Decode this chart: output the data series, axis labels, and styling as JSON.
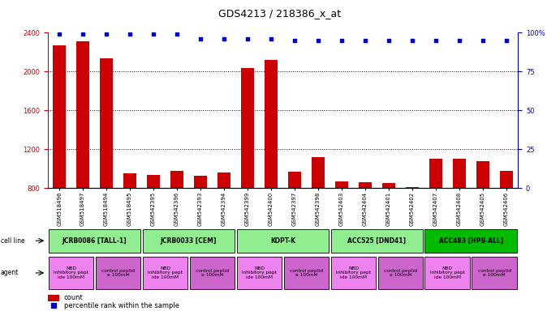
{
  "title": "GDS4213 / 218386_x_at",
  "samples": [
    "GSM518496",
    "GSM518497",
    "GSM518494",
    "GSM518495",
    "GSM542395",
    "GSM542396",
    "GSM542393",
    "GSM542394",
    "GSM542399",
    "GSM542400",
    "GSM542397",
    "GSM542398",
    "GSM542403",
    "GSM542404",
    "GSM542401",
    "GSM542402",
    "GSM542407",
    "GSM542408",
    "GSM542405",
    "GSM542406"
  ],
  "counts": [
    2270,
    2310,
    2140,
    950,
    940,
    980,
    930,
    960,
    2040,
    2120,
    970,
    1120,
    870,
    860,
    850,
    810,
    1100,
    1100,
    1080,
    980
  ],
  "percentiles": [
    99,
    99,
    99,
    99,
    99,
    99,
    96,
    96,
    96,
    96,
    95,
    95,
    95,
    95,
    95,
    95,
    95,
    95,
    95,
    95
  ],
  "bar_color": "#cc0000",
  "dot_color": "#0000cc",
  "ylim_left": [
    800,
    2400
  ],
  "ylim_right": [
    0,
    100
  ],
  "yticks_left": [
    800,
    1200,
    1600,
    2000,
    2400
  ],
  "yticks_right": [
    0,
    25,
    50,
    75,
    100
  ],
  "cell_lines": [
    {
      "label": "JCRB0086 [TALL-1]",
      "start": 0,
      "end": 4,
      "color": "#90ee90"
    },
    {
      "label": "JCRB0033 [CEM]",
      "start": 4,
      "end": 8,
      "color": "#90ee90"
    },
    {
      "label": "KOPT-K",
      "start": 8,
      "end": 12,
      "color": "#90ee90"
    },
    {
      "label": "ACC525 [DND41]",
      "start": 12,
      "end": 16,
      "color": "#90ee90"
    },
    {
      "label": "ACC483 [HPB-ALL]",
      "start": 16,
      "end": 20,
      "color": "#00bb00"
    }
  ],
  "agents": [
    {
      "label": "NBD\ninhibitory pept\nide 100mM",
      "start": 0,
      "end": 2,
      "color": "#ee82ee"
    },
    {
      "label": "control peptid\ne 100mM",
      "start": 2,
      "end": 4,
      "color": "#cc66cc"
    },
    {
      "label": "NBD\ninhibitory pept\nide 100mM",
      "start": 4,
      "end": 6,
      "color": "#ee82ee"
    },
    {
      "label": "control peptid\ne 100mM",
      "start": 6,
      "end": 8,
      "color": "#cc66cc"
    },
    {
      "label": "NBD\ninhibitory pept\nide 100mM",
      "start": 8,
      "end": 10,
      "color": "#ee82ee"
    },
    {
      "label": "control peptid\ne 100mM",
      "start": 10,
      "end": 12,
      "color": "#cc66cc"
    },
    {
      "label": "NBD\ninhibitory pept\nide 100mM",
      "start": 12,
      "end": 14,
      "color": "#ee82ee"
    },
    {
      "label": "control peptid\ne 100mM",
      "start": 14,
      "end": 16,
      "color": "#cc66cc"
    },
    {
      "label": "NBD\ninhibitory pept\nide 100mM",
      "start": 16,
      "end": 18,
      "color": "#ee82ee"
    },
    {
      "label": "control peptid\ne 100mM",
      "start": 18,
      "end": 20,
      "color": "#cc66cc"
    }
  ],
  "legend_count_color": "#cc0000",
  "legend_dot_color": "#0000cc",
  "bg_color": "#ffffff",
  "axis_color_left": "#cc0000",
  "axis_color_right": "#0000cc",
  "grid_color": "#000000",
  "title_fontsize": 9,
  "tick_fontsize": 6,
  "bar_width": 0.55
}
